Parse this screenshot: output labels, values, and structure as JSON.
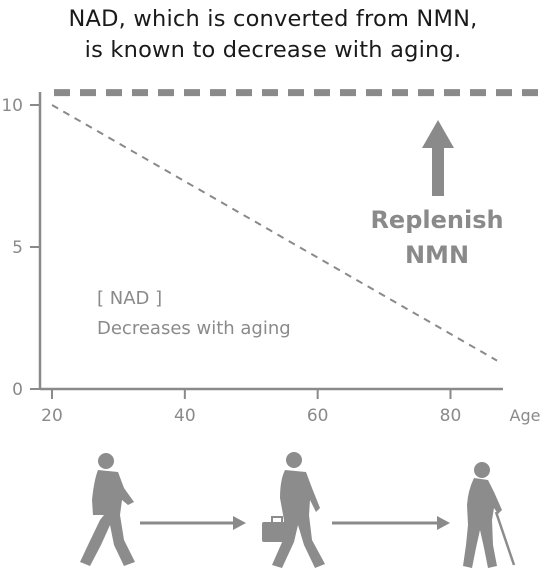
{
  "title_line1": "NAD, which is converted from NMN,",
  "title_line2": "is known to decrease with aging.",
  "chart_data": {
    "type": "line",
    "title": "NAD, which is converted from NMN, is known to decrease with aging.",
    "xlabel": "Age",
    "ylabel": "",
    "xlim": [
      20,
      90
    ],
    "ylim": [
      0,
      10.5
    ],
    "x_ticks": [
      20,
      40,
      60,
      80
    ],
    "y_ticks": [
      0,
      5,
      10
    ],
    "grid": false,
    "series": [
      {
        "name": "[ NAD ]",
        "style": "dashed-thin",
        "x": [
          20,
          87
        ],
        "y": [
          10,
          1
        ]
      },
      {
        "name": "Replenish NMN",
        "style": "dashed-thick",
        "x": [
          20,
          90
        ],
        "y": [
          10.4,
          10.4
        ]
      }
    ],
    "annotations": {
      "nad_label": "[ NAD ]",
      "nad_desc": "Decreases with aging",
      "replenish_1": "Replenish",
      "replenish_2": "NMN"
    }
  },
  "colors": {
    "gray": "#8a8a8a",
    "figure": "#8c8c8c"
  },
  "icons": [
    "young-walking-person-icon",
    "businessman-briefcase-icon",
    "elderly-cane-person-icon",
    "right-arrow-icon"
  ]
}
